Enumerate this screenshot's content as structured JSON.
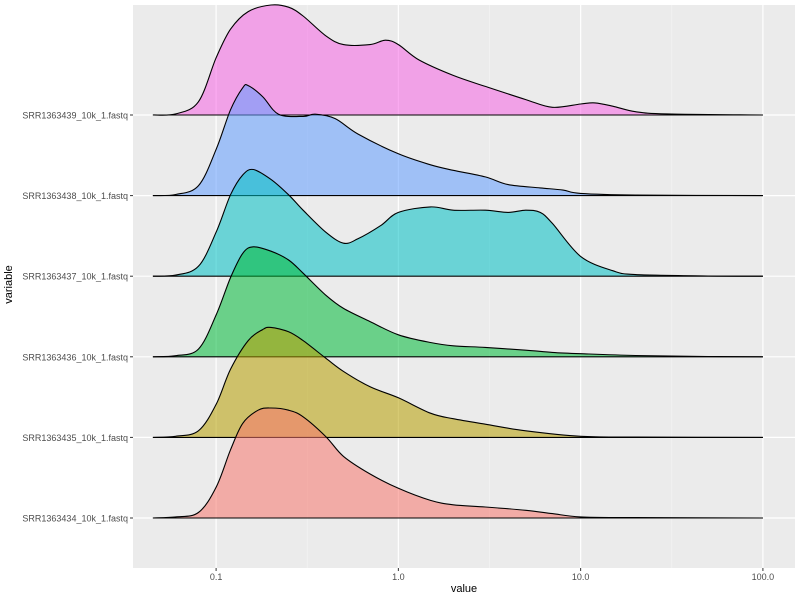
{
  "chart_data": {
    "type": "ridgeline",
    "title": "",
    "xlabel": "value",
    "ylabel": "variable",
    "x_scale": "log10",
    "xlim": [
      0.035,
      150
    ],
    "x_ticks": [
      0.1,
      1.0,
      10.0,
      100.0
    ],
    "x_tick_labels": [
      "0.1",
      "1.0",
      "10.0",
      "100.0"
    ],
    "grid": true,
    "background": "#ebebeb",
    "series": [
      {
        "name": "SRR1363434_10k_1.fastq",
        "color": "#F8766D",
        "density_points": [
          [
            0.045,
            0
          ],
          [
            0.06,
            0.01
          ],
          [
            0.08,
            0.05
          ],
          [
            0.1,
            0.28
          ],
          [
            0.12,
            0.62
          ],
          [
            0.14,
            0.86
          ],
          [
            0.17,
            0.98
          ],
          [
            0.2,
            1.0
          ],
          [
            0.25,
            0.98
          ],
          [
            0.3,
            0.92
          ],
          [
            0.4,
            0.74
          ],
          [
            0.5,
            0.56
          ],
          [
            0.7,
            0.4
          ],
          [
            1.0,
            0.27
          ],
          [
            1.5,
            0.16
          ],
          [
            2.0,
            0.12
          ],
          [
            3.0,
            0.1
          ],
          [
            5.0,
            0.07
          ],
          [
            7.0,
            0.04
          ],
          [
            10.0,
            0.01
          ],
          [
            20.0,
            0.004
          ],
          [
            100.0,
            0
          ]
        ]
      },
      {
        "name": "SRR1363435_10k_1.fastq",
        "color": "#B79F00",
        "density_points": [
          [
            0.045,
            0
          ],
          [
            0.06,
            0.01
          ],
          [
            0.08,
            0.06
          ],
          [
            0.1,
            0.3
          ],
          [
            0.12,
            0.62
          ],
          [
            0.15,
            0.88
          ],
          [
            0.18,
            0.98
          ],
          [
            0.2,
            1.0
          ],
          [
            0.25,
            0.96
          ],
          [
            0.3,
            0.88
          ],
          [
            0.4,
            0.72
          ],
          [
            0.5,
            0.6
          ],
          [
            0.7,
            0.46
          ],
          [
            1.0,
            0.36
          ],
          [
            1.5,
            0.22
          ],
          [
            2.0,
            0.17
          ],
          [
            3.0,
            0.12
          ],
          [
            5.0,
            0.06
          ],
          [
            10.0,
            0.01
          ],
          [
            20.0,
            0.003
          ],
          [
            100.0,
            0
          ]
        ]
      },
      {
        "name": "SRR1363436_10k_1.fastq",
        "color": "#00BA38",
        "density_points": [
          [
            0.045,
            0
          ],
          [
            0.06,
            0.01
          ],
          [
            0.08,
            0.07
          ],
          [
            0.1,
            0.38
          ],
          [
            0.12,
            0.72
          ],
          [
            0.14,
            0.94
          ],
          [
            0.16,
            1.0
          ],
          [
            0.2,
            0.96
          ],
          [
            0.25,
            0.88
          ],
          [
            0.3,
            0.76
          ],
          [
            0.4,
            0.56
          ],
          [
            0.5,
            0.44
          ],
          [
            0.7,
            0.32
          ],
          [
            1.0,
            0.2
          ],
          [
            1.5,
            0.13
          ],
          [
            2.0,
            0.1
          ],
          [
            3.0,
            0.085
          ],
          [
            5.0,
            0.06
          ],
          [
            7.0,
            0.04
          ],
          [
            10.0,
            0.028
          ],
          [
            20.0,
            0.012
          ],
          [
            50.0,
            0.003
          ],
          [
            100.0,
            0
          ]
        ]
      },
      {
        "name": "SRR1363437_10k_1.fastq",
        "color": "#00BFC4",
        "density_points": [
          [
            0.045,
            0
          ],
          [
            0.06,
            0.01
          ],
          [
            0.08,
            0.09
          ],
          [
            0.1,
            0.4
          ],
          [
            0.12,
            0.74
          ],
          [
            0.14,
            0.92
          ],
          [
            0.16,
            0.97
          ],
          [
            0.2,
            0.88
          ],
          [
            0.25,
            0.74
          ],
          [
            0.3,
            0.6
          ],
          [
            0.4,
            0.4
          ],
          [
            0.5,
            0.3
          ],
          [
            0.6,
            0.34
          ],
          [
            0.8,
            0.46
          ],
          [
            1.0,
            0.58
          ],
          [
            1.5,
            0.63
          ],
          [
            2.0,
            0.6
          ],
          [
            3.0,
            0.6
          ],
          [
            4.0,
            0.58
          ],
          [
            5.0,
            0.6
          ],
          [
            6.0,
            0.58
          ],
          [
            7.0,
            0.48
          ],
          [
            10.0,
            0.18
          ],
          [
            15.0,
            0.05
          ],
          [
            20.0,
            0.015
          ],
          [
            50.0,
            0.002
          ],
          [
            100.0,
            0
          ]
        ]
      },
      {
        "name": "SRR1363438_10k_1.fastq",
        "color": "#619CFF",
        "density_points": [
          [
            0.045,
            0
          ],
          [
            0.06,
            0.01
          ],
          [
            0.08,
            0.09
          ],
          [
            0.1,
            0.42
          ],
          [
            0.12,
            0.78
          ],
          [
            0.14,
            0.98
          ],
          [
            0.15,
            1.0
          ],
          [
            0.18,
            0.9
          ],
          [
            0.22,
            0.74
          ],
          [
            0.3,
            0.72
          ],
          [
            0.35,
            0.74
          ],
          [
            0.45,
            0.7
          ],
          [
            0.6,
            0.56
          ],
          [
            1.0,
            0.38
          ],
          [
            1.5,
            0.28
          ],
          [
            2.0,
            0.23
          ],
          [
            3.0,
            0.17
          ],
          [
            4.0,
            0.1
          ],
          [
            6.0,
            0.07
          ],
          [
            8.0,
            0.05
          ],
          [
            10.0,
            0.02
          ],
          [
            20.0,
            0.005
          ],
          [
            100.0,
            0
          ]
        ]
      },
      {
        "name": "SRR1363439_10k_1.fastq",
        "color": "#F564E3",
        "density_points": [
          [
            0.045,
            0
          ],
          [
            0.06,
            0.01
          ],
          [
            0.08,
            0.12
          ],
          [
            0.1,
            0.52
          ],
          [
            0.12,
            0.78
          ],
          [
            0.15,
            0.94
          ],
          [
            0.2,
            1.0
          ],
          [
            0.25,
            0.98
          ],
          [
            0.3,
            0.9
          ],
          [
            0.4,
            0.72
          ],
          [
            0.5,
            0.64
          ],
          [
            0.7,
            0.64
          ],
          [
            0.85,
            0.68
          ],
          [
            1.0,
            0.64
          ],
          [
            1.3,
            0.5
          ],
          [
            2.0,
            0.36
          ],
          [
            3.0,
            0.26
          ],
          [
            5.0,
            0.14
          ],
          [
            7.0,
            0.07
          ],
          [
            10.0,
            0.1
          ],
          [
            12.0,
            0.11
          ],
          [
            15.0,
            0.08
          ],
          [
            20.0,
            0.03
          ],
          [
            30.0,
            0.01
          ],
          [
            100.0,
            0
          ]
        ]
      }
    ]
  }
}
